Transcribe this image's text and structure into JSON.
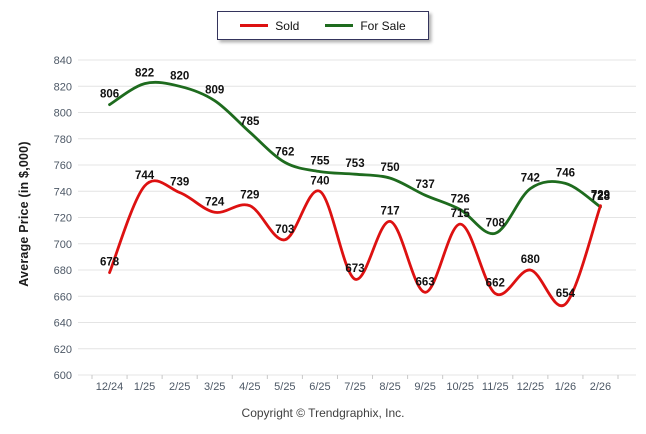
{
  "legend": {
    "items": [
      {
        "label": "Sold",
        "color": "#dd1111"
      },
      {
        "label": "For Sale",
        "color": "#1e6b1e"
      }
    ]
  },
  "footer": {
    "text": "Copyright © Trendgraphix, Inc."
  },
  "chart_data": {
    "type": "line",
    "title": "",
    "xlabel": "",
    "ylabel": "Average Price (in $,000)",
    "categories": [
      "12/24",
      "1/25",
      "2/25",
      "3/25",
      "4/25",
      "5/25",
      "6/25",
      "7/25",
      "8/25",
      "9/25",
      "10/25",
      "11/25",
      "12/25",
      "1/26",
      "2/26"
    ],
    "series": [
      {
        "name": "Sold",
        "color": "#dd1111",
        "values": [
          678,
          744,
          739,
          724,
          729,
          703,
          740,
          673,
          717,
          663,
          715,
          662,
          680,
          654,
          729
        ]
      },
      {
        "name": "For Sale",
        "color": "#1e6b1e",
        "values": [
          806,
          822,
          820,
          809,
          785,
          762,
          755,
          753,
          750,
          737,
          726,
          708,
          742,
          746,
          728
        ]
      }
    ],
    "ylim": [
      600,
      840
    ],
    "y_step": 20,
    "grid": true,
    "legend_position": "top",
    "axis_tick_color": "#4d5866",
    "gridline_color": "#e4e4e4",
    "label_color": "#111111"
  }
}
